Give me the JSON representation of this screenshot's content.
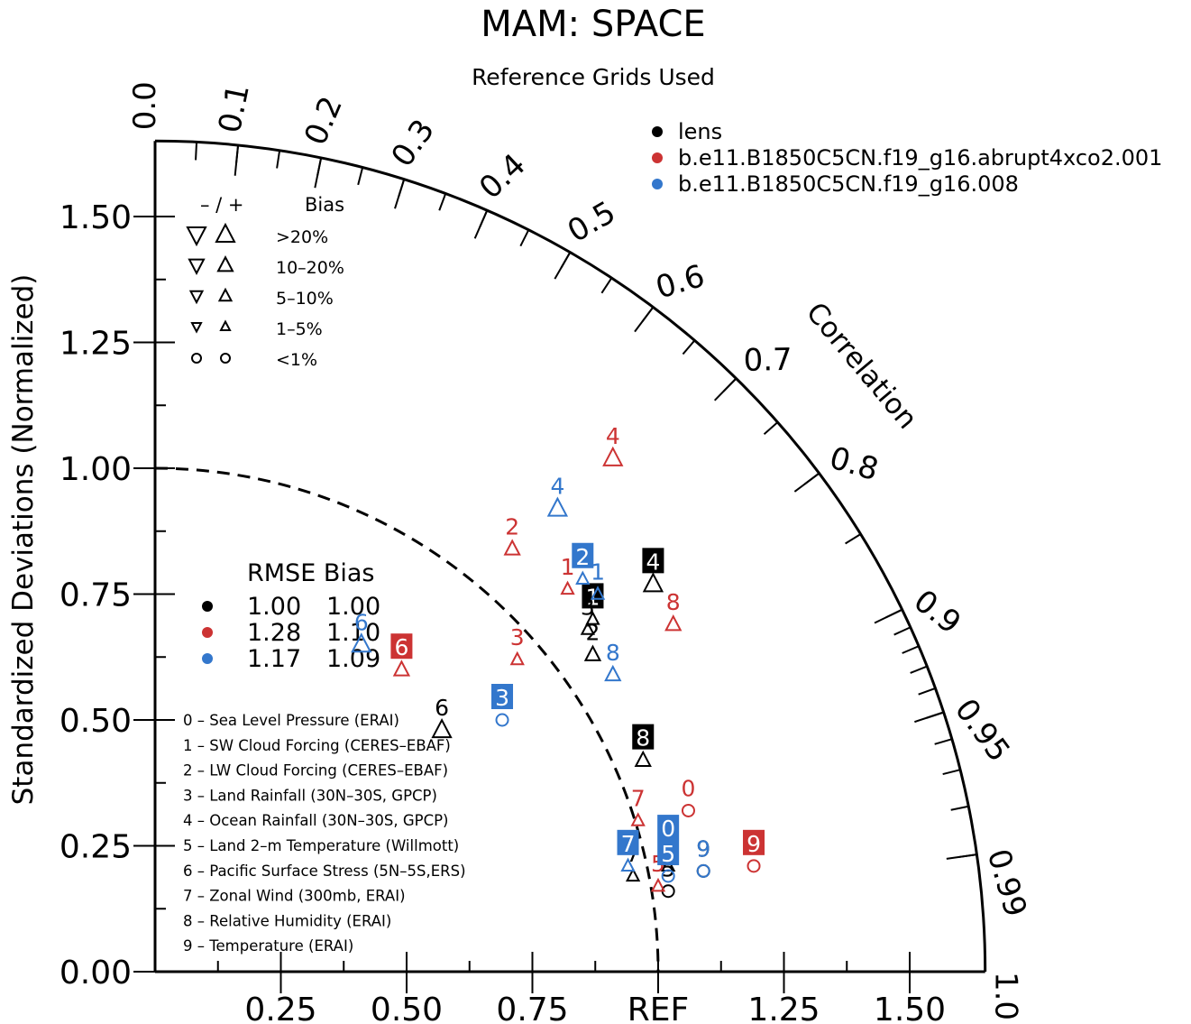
{
  "chart_data": {
    "type": "scatter",
    "subtype": "taylor-diagram",
    "title": "MAM: SPACE",
    "subtitle": "Reference Grids Used",
    "ylabel": "Standardized Deviations (Normalized)",
    "ref_label": "REF",
    "arc_label": "Correlation",
    "std_max": 1.65,
    "y_ticks": [
      "0.00",
      "0.25",
      "0.50",
      "0.75",
      "1.00",
      "1.25",
      "1.50"
    ],
    "x_ticks": [
      "0.25",
      "0.50",
      "0.75",
      "REF",
      "1.25",
      "1.50"
    ],
    "major_correlations": [
      "0.0",
      "0.1",
      "0.2",
      "0.3",
      "0.4",
      "0.5",
      "0.6",
      "0.7",
      "0.8",
      "0.9",
      "0.95",
      "0.99",
      "1.0"
    ],
    "series": [
      {
        "name": "lens",
        "color": "#000000",
        "rmse": "1.00",
        "bias": "1.00",
        "points": [
          {
            "var": 0,
            "x": 1.02,
            "y": 0.21,
            "symbol": "up",
            "size": "small",
            "label": "0"
          },
          {
            "var": 1,
            "x": 0.87,
            "y": 0.7,
            "symbol": "up",
            "size": "small",
            "label": "1",
            "boxed": true
          },
          {
            "var": 2,
            "x": 0.87,
            "y": 0.63,
            "symbol": "up",
            "size": "medium",
            "label": "2"
          },
          {
            "var": 3,
            "x": 0.86,
            "y": 0.68,
            "symbol": "up",
            "size": "small",
            "label": "3"
          },
          {
            "var": 4,
            "x": 0.99,
            "y": 0.77,
            "symbol": "up",
            "size": "large",
            "label": "4",
            "boxed": true
          },
          {
            "var": 5,
            "x": 1.02,
            "y": 0.16,
            "symbol": "circle",
            "size": "small",
            "label": "5"
          },
          {
            "var": 6,
            "x": 0.57,
            "y": 0.48,
            "symbol": "up",
            "size": "large",
            "label": "6"
          },
          {
            "var": 7,
            "x": 0.95,
            "y": 0.19,
            "symbol": "up",
            "size": "small",
            "label": "7"
          },
          {
            "var": 8,
            "x": 0.97,
            "y": 0.42,
            "symbol": "up",
            "size": "medium",
            "label": "8",
            "boxed": true
          },
          {
            "var": 9,
            "x": 1.09,
            "y": 0.2,
            "symbol": "circle",
            "size": "small",
            "label": "9"
          }
        ]
      },
      {
        "name": "b.e11.B1850C5CN.f19_g16.abrupt4xco2.001",
        "color": "#cc3333",
        "rmse": "1.28",
        "bias": "1.10",
        "points": [
          {
            "var": 0,
            "x": 1.06,
            "y": 0.32,
            "symbol": "circle",
            "size": "small",
            "label": "0"
          },
          {
            "var": 1,
            "x": 0.82,
            "y": 0.76,
            "symbol": "up",
            "size": "small",
            "label": "1"
          },
          {
            "var": 2,
            "x": 0.71,
            "y": 0.84,
            "symbol": "up",
            "size": "medium",
            "label": "2"
          },
          {
            "var": 3,
            "x": 0.72,
            "y": 0.62,
            "symbol": "up",
            "size": "small",
            "label": "3"
          },
          {
            "var": 4,
            "x": 0.91,
            "y": 1.02,
            "symbol": "up",
            "size": "large",
            "label": "4"
          },
          {
            "var": 5,
            "x": 1.0,
            "y": 0.17,
            "symbol": "up",
            "size": "small",
            "label": "5"
          },
          {
            "var": 6,
            "x": 0.49,
            "y": 0.6,
            "symbol": "up",
            "size": "medium",
            "label": "6",
            "boxed": true
          },
          {
            "var": 7,
            "x": 0.96,
            "y": 0.3,
            "symbol": "up",
            "size": "small",
            "label": "7"
          },
          {
            "var": 8,
            "x": 1.03,
            "y": 0.69,
            "symbol": "up",
            "size": "medium",
            "label": "8"
          },
          {
            "var": 9,
            "x": 1.19,
            "y": 0.21,
            "symbol": "circle",
            "size": "small",
            "label": "9",
            "boxed": true
          }
        ]
      },
      {
        "name": "b.e11.B1850C5CN.f19_g16.008",
        "color": "#3377cc",
        "rmse": "1.17",
        "bias": "1.09",
        "points": [
          {
            "var": 0,
            "x": 1.02,
            "y": 0.24,
            "symbol": "circle",
            "size": "small",
            "label": "0",
            "boxed": true
          },
          {
            "var": 1,
            "x": 0.88,
            "y": 0.75,
            "symbol": "up",
            "size": "small",
            "label": "1"
          },
          {
            "var": 2,
            "x": 0.85,
            "y": 0.78,
            "symbol": "up",
            "size": "small",
            "label": "2",
            "boxed": true
          },
          {
            "var": 3,
            "x": 0.69,
            "y": 0.5,
            "symbol": "circle",
            "size": "small",
            "label": "3",
            "boxed": true
          },
          {
            "var": 4,
            "x": 0.8,
            "y": 0.92,
            "symbol": "up",
            "size": "large",
            "label": "4"
          },
          {
            "var": 5,
            "x": 1.02,
            "y": 0.19,
            "symbol": "circle",
            "size": "small",
            "label": "5",
            "boxed": true
          },
          {
            "var": 6,
            "x": 0.41,
            "y": 0.65,
            "symbol": "up",
            "size": "large",
            "label": "6"
          },
          {
            "var": 7,
            "x": 0.94,
            "y": 0.21,
            "symbol": "up",
            "size": "small",
            "label": "7",
            "boxed": true
          },
          {
            "var": 8,
            "x": 0.91,
            "y": 0.59,
            "symbol": "up",
            "size": "medium",
            "label": "8"
          },
          {
            "var": 9,
            "x": 1.09,
            "y": 0.2,
            "symbol": "circle",
            "size": "small",
            "label": "9"
          }
        ]
      }
    ],
    "stats_legend": {
      "header": "RMSE Bias"
    },
    "bias_legend": {
      "header_sign": "– / +",
      "header_bias": "Bias",
      "rows": [
        {
          "label": ">20%",
          "size": "large"
        },
        {
          "label": "10–20%",
          "size": "medium"
        },
        {
          "label": "5–10%",
          "size": "small"
        },
        {
          "label": "1–5%",
          "size": "tiny"
        },
        {
          "label": "<1%",
          "size": "circle"
        }
      ]
    },
    "variables": [
      "0 – Sea Level Pressure (ERAI)",
      "1 – SW Cloud Forcing (CERES–EBAF)",
      "2 – LW Cloud Forcing (CERES–EBAF)",
      "3 – Land Rainfall (30N–30S, GPCP)",
      "4 – Ocean Rainfall (30N–30S, GPCP)",
      "5 – Land 2–m Temperature (Willmott)",
      "6 – Pacific Surface Stress (5N–5S,ERS)",
      "7 – Zonal Wind (300mb, ERAI)",
      "8 – Relative Humidity (ERAI)",
      "9 – Temperature (ERAI)"
    ]
  }
}
